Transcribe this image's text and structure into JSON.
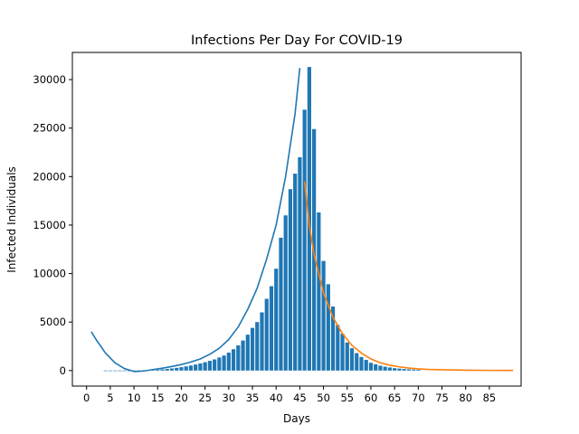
{
  "chart_data": {
    "type": "bar",
    "title": "Infections Per Day For COVID-19",
    "xlabel": "Days",
    "ylabel": "Infected Individuals",
    "xlim": [
      -3,
      91.7
    ],
    "ylim": [
      -1600,
      32800
    ],
    "grid": false,
    "legend": "none",
    "x_ticks": [
      0,
      5,
      10,
      15,
      20,
      25,
      30,
      35,
      40,
      45,
      50,
      55,
      60,
      65,
      70,
      75,
      80,
      85
    ],
    "y_ticks": [
      0,
      5000,
      10000,
      15000,
      20000,
      25000,
      30000
    ],
    "bars": {
      "color": "#1f77b4",
      "x": [
        4,
        5,
        6,
        7,
        8,
        9,
        10,
        11,
        12,
        13,
        14,
        15,
        16,
        17,
        18,
        19,
        20,
        21,
        22,
        23,
        24,
        25,
        26,
        27,
        28,
        29,
        30,
        31,
        32,
        33,
        34,
        35,
        36,
        37,
        38,
        39,
        40,
        41,
        42,
        43,
        44,
        45,
        46,
        47,
        48,
        49,
        50,
        51,
        52,
        53,
        54,
        55,
        56,
        57,
        58,
        59,
        60,
        61,
        62,
        63,
        64,
        65,
        66,
        67,
        68,
        69,
        70
      ],
      "values": [
        5,
        5,
        5,
        5,
        5,
        5,
        10,
        15,
        25,
        40,
        60,
        90,
        130,
        170,
        220,
        280,
        350,
        430,
        520,
        620,
        730,
        860,
        1000,
        1150,
        1350,
        1550,
        1850,
        2200,
        2600,
        3100,
        3700,
        4400,
        5000,
        6000,
        7400,
        8700,
        10500,
        13700,
        16000,
        18700,
        20300,
        22000,
        26900,
        31300,
        24900,
        16300,
        11300,
        8900,
        6600,
        4700,
        3800,
        2900,
        2300,
        1800,
        1400,
        1100,
        800,
        650,
        500,
        400,
        320,
        250,
        200,
        160,
        130,
        100,
        80
      ]
    },
    "series": [
      {
        "color": "#1f77b4",
        "x": [
          1,
          2,
          4,
          6,
          8,
          10,
          12,
          14,
          16,
          18,
          20,
          22,
          24,
          26,
          28,
          30,
          32,
          34,
          36,
          38,
          40,
          42,
          44,
          45
        ],
        "y": [
          4000,
          3200,
          1800,
          800,
          200,
          -100,
          -50,
          100,
          250,
          420,
          620,
          880,
          1200,
          1680,
          2300,
          3200,
          4500,
          6300,
          8500,
          11500,
          15000,
          20000,
          26500,
          31200
        ]
      },
      {
        "color": "#ff7f0e",
        "x": [
          46,
          47,
          48,
          50,
          52,
          54,
          56,
          58,
          60,
          62,
          64,
          66,
          68,
          70,
          72,
          75,
          80,
          85,
          90
        ],
        "y": [
          19500,
          15000,
          12000,
          8000,
          5500,
          3800,
          2600,
          1800,
          1200,
          800,
          550,
          380,
          260,
          180,
          120,
          80,
          40,
          20,
          10
        ]
      }
    ]
  }
}
